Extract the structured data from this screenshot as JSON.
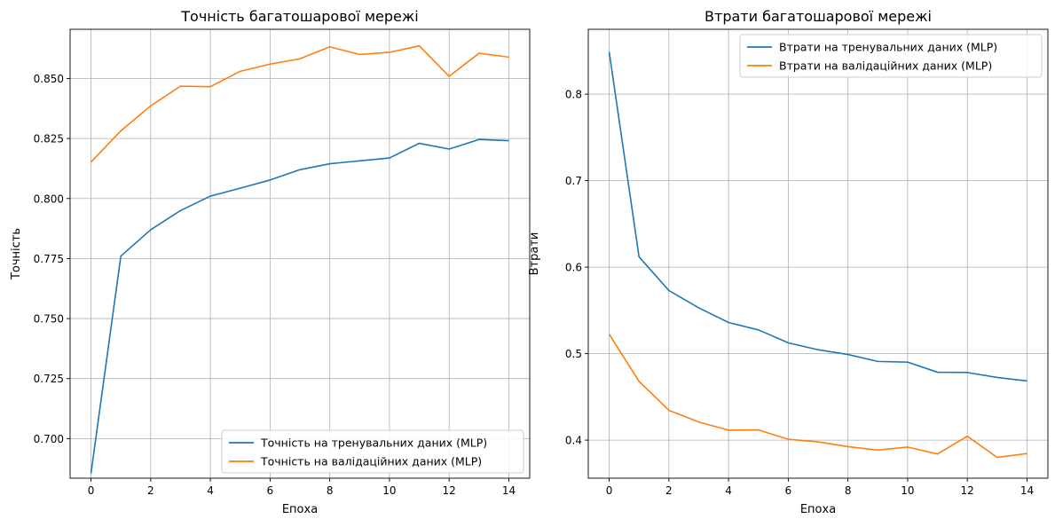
{
  "chart_data": [
    {
      "type": "line",
      "title": "Точність багатошарової мережі",
      "xlabel": "Епоха",
      "ylabel": "Точність",
      "xlim": [
        -0.7,
        14.7
      ],
      "ylim": [
        0.6835,
        0.8705
      ],
      "xticks": [
        0,
        2,
        4,
        6,
        8,
        10,
        12,
        14
      ],
      "yticks": [
        0.7,
        0.725,
        0.75,
        0.775,
        0.8,
        0.825,
        0.85
      ],
      "ytick_labels": [
        "0.700",
        "0.725",
        "0.750",
        "0.775",
        "0.800",
        "0.825",
        "0.850"
      ],
      "grid": true,
      "legend_position": "lower-right",
      "x": [
        0,
        1,
        2,
        3,
        4,
        5,
        6,
        7,
        8,
        9,
        10,
        11,
        12,
        13,
        14
      ],
      "series": [
        {
          "name": "Точність на тренувальних даних (MLP)",
          "color": "#1f77b4",
          "values": [
            0.6855,
            0.776,
            0.787,
            0.795,
            0.801,
            0.8043,
            0.8077,
            0.812,
            0.8145,
            0.8157,
            0.8169,
            0.823,
            0.8206,
            0.8246,
            0.8241
          ]
        },
        {
          "name": "Точність на валідаційних даних (MLP)",
          "color": "#ff7f0e",
          "values": [
            0.8152,
            0.8282,
            0.8386,
            0.8468,
            0.8466,
            0.853,
            0.856,
            0.8582,
            0.8632,
            0.86,
            0.8609,
            0.8636,
            0.8509,
            0.8605,
            0.8589
          ]
        }
      ]
    },
    {
      "type": "line",
      "title": "Втрати багатошарової мережі",
      "xlabel": "Епоха",
      "ylabel": "Втрати",
      "xlim": [
        -0.7,
        14.7
      ],
      "ylim": [
        0.356,
        0.875
      ],
      "xticks": [
        0,
        2,
        4,
        6,
        8,
        10,
        12,
        14
      ],
      "yticks": [
        0.4,
        0.5,
        0.6,
        0.7,
        0.8
      ],
      "ytick_labels": [
        "0.4",
        "0.5",
        "0.6",
        "0.7",
        "0.8"
      ],
      "grid": true,
      "legend_position": "upper-right",
      "x": [
        0,
        1,
        2,
        3,
        4,
        5,
        6,
        7,
        8,
        9,
        10,
        11,
        12,
        13,
        14
      ],
      "series": [
        {
          "name": "Втрати на тренувальних даних (MLP)",
          "color": "#1f77b4",
          "values": [
            0.849,
            0.612,
            0.573,
            0.553,
            0.536,
            0.5275,
            0.5125,
            0.5045,
            0.499,
            0.491,
            0.4902,
            0.4785,
            0.4782,
            0.4725,
            0.4685
          ]
        },
        {
          "name": "Втрати на валідаційних даних (MLP)",
          "color": "#ff7f0e",
          "values": [
            0.5225,
            0.468,
            0.4345,
            0.421,
            0.4115,
            0.4118,
            0.401,
            0.398,
            0.3925,
            0.3885,
            0.392,
            0.384,
            0.4045,
            0.38,
            0.3845
          ]
        }
      ]
    }
  ]
}
